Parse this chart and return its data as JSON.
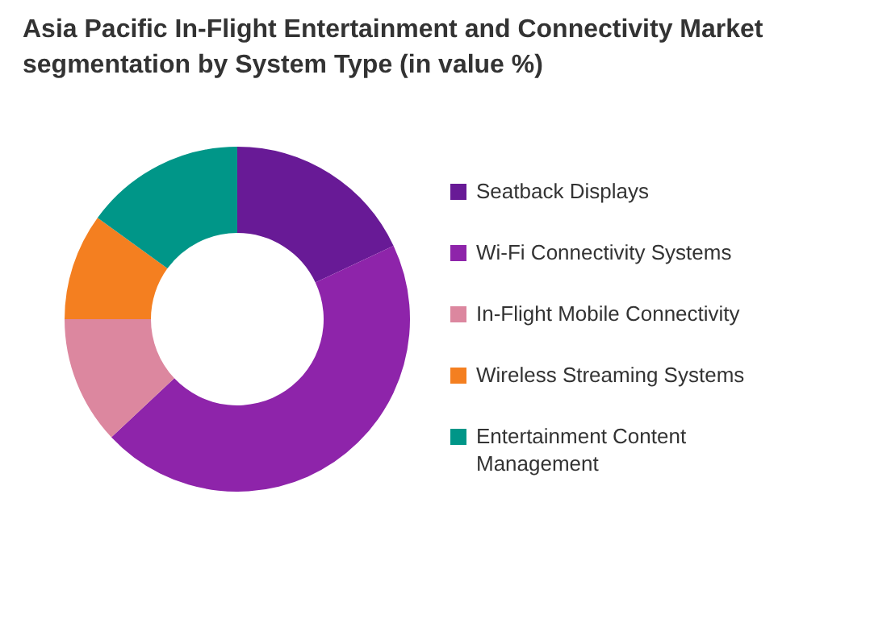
{
  "chart_data": {
    "type": "donut",
    "title": "Asia Pacific In-Flight Entertainment and Connectivity Market segmentation by System Type (in value %)",
    "categories": [
      "Seatback Displays",
      "Wi-Fi Connectivity Systems",
      "In-Flight Mobile Connectivity",
      "Wireless Streaming Systems",
      "Entertainment Content Management"
    ],
    "values": [
      18,
      45,
      12,
      10,
      15
    ],
    "colors": [
      "#681a96",
      "#8e24aa",
      "#dc879f",
      "#f47f20",
      "#009688"
    ],
    "legend": "right"
  }
}
